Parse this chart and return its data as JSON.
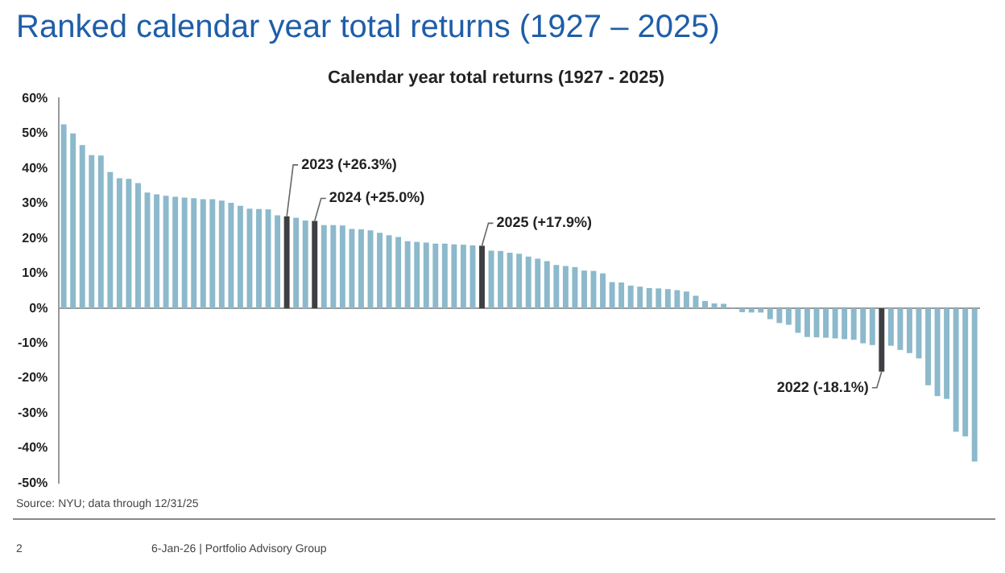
{
  "chart_data": {
    "type": "bar",
    "title": "Ranked calendar year total returns (1927 – 2025)",
    "subtitle": "Calendar year total returns (1927 - 2025)",
    "categories": [
      null,
      null,
      null,
      null,
      null,
      null,
      null,
      null,
      null,
      null,
      null,
      null,
      null,
      null,
      null,
      null,
      null,
      null,
      null,
      null,
      null,
      null,
      null,
      null,
      null,
      null,
      null,
      null,
      null,
      null,
      null,
      null,
      null,
      null,
      null,
      null,
      null,
      null,
      null,
      null,
      null,
      null,
      null,
      null,
      null,
      null,
      null,
      null,
      null,
      null,
      null,
      null,
      null,
      null,
      null,
      null,
      null,
      null,
      null,
      null,
      null,
      null,
      null,
      null,
      null,
      null,
      null,
      null,
      null,
      null,
      null,
      null,
      null,
      null,
      null,
      null,
      null,
      null,
      null,
      null,
      null,
      null,
      null,
      null,
      null,
      null,
      null,
      null,
      null,
      null,
      null,
      null,
      null,
      null,
      null,
      null,
      null,
      null,
      null
    ],
    "values": [
      52.6,
      50.0,
      46.7,
      43.8,
      43.7,
      39.0,
      37.2,
      37.0,
      35.8,
      33.1,
      32.6,
      32.2,
      31.9,
      31.7,
      31.5,
      31.2,
      31.2,
      30.8,
      30.2,
      29.3,
      28.5,
      28.4,
      28.3,
      26.6,
      26.3,
      25.9,
      25.1,
      25.0,
      23.8,
      23.8,
      23.7,
      22.7,
      22.6,
      22.3,
      21.6,
      20.9,
      20.4,
      19.2,
      19.0,
      18.8,
      18.5,
      18.5,
      18.3,
      18.2,
      18.0,
      17.9,
      16.5,
      16.4,
      15.9,
      15.6,
      14.8,
      14.2,
      13.5,
      12.4,
      12.1,
      11.8,
      10.8,
      10.7,
      10.0,
      7.5,
      7.4,
      6.5,
      6.2,
      5.8,
      5.7,
      5.5,
      5.2,
      4.8,
      3.6,
      2.1,
      1.4,
      1.3,
      0.3,
      -1.1,
      -1.2,
      -1.2,
      -3.1,
      -4.2,
      -4.7,
      -7.0,
      -8.2,
      -8.3,
      -8.4,
      -8.6,
      -8.8,
      -9.0,
      -10.0,
      -10.5,
      -18.1,
      -10.7,
      -11.9,
      -12.8,
      -14.3,
      -22.0,
      -25.1,
      -25.9,
      -35.3,
      -36.6,
      -43.8
    ],
    "colors": [
      "#8cb9cb",
      "#8cb9cb",
      "#8cb9cb",
      "#8cb9cb",
      "#8cb9cb",
      "#8cb9cb",
      "#8cb9cb",
      "#8cb9cb",
      "#8cb9cb",
      "#8cb9cb",
      "#8cb9cb",
      "#8cb9cb",
      "#8cb9cb",
      "#8cb9cb",
      "#8cb9cb",
      "#8cb9cb",
      "#8cb9cb",
      "#8cb9cb",
      "#8cb9cb",
      "#8cb9cb",
      "#8cb9cb",
      "#8cb9cb",
      "#8cb9cb",
      "#8cb9cb",
      "#3d3f42",
      "#8cb9cb",
      "#8cb9cb",
      "#3d3f42",
      "#8cb9cb",
      "#8cb9cb",
      "#8cb9cb",
      "#8cb9cb",
      "#8cb9cb",
      "#8cb9cb",
      "#8cb9cb",
      "#8cb9cb",
      "#8cb9cb",
      "#8cb9cb",
      "#8cb9cb",
      "#8cb9cb",
      "#8cb9cb",
      "#8cb9cb",
      "#8cb9cb",
      "#8cb9cb",
      "#8cb9cb",
      "#3d3f42",
      "#8cb9cb",
      "#8cb9cb",
      "#8cb9cb",
      "#8cb9cb",
      "#8cb9cb",
      "#8cb9cb",
      "#8cb9cb",
      "#8cb9cb",
      "#8cb9cb",
      "#8cb9cb",
      "#8cb9cb",
      "#8cb9cb",
      "#8cb9cb",
      "#8cb9cb",
      "#8cb9cb",
      "#8cb9cb",
      "#8cb9cb",
      "#8cb9cb",
      "#8cb9cb",
      "#8cb9cb",
      "#8cb9cb",
      "#8cb9cb",
      "#8cb9cb",
      "#8cb9cb",
      "#8cb9cb",
      "#8cb9cb",
      "#8cb9cb",
      "#8cb9cb",
      "#8cb9cb",
      "#8cb9cb",
      "#8cb9cb",
      "#8cb9cb",
      "#8cb9cb",
      "#8cb9cb",
      "#8cb9cb",
      "#8cb9cb",
      "#8cb9cb",
      "#8cb9cb",
      "#8cb9cb",
      "#8cb9cb",
      "#8cb9cb",
      "#8cb9cb",
      "#3d3f42",
      "#8cb9cb",
      "#8cb9cb",
      "#8cb9cb",
      "#8cb9cb",
      "#8cb9cb",
      "#8cb9cb",
      "#8cb9cb",
      "#8cb9cb",
      "#8cb9cb",
      "#8cb9cb"
    ],
    "value_labels": [
      null,
      null,
      null,
      null,
      null,
      null,
      null,
      null,
      null,
      null,
      null,
      null,
      null,
      null,
      null,
      null,
      null,
      null,
      null,
      null,
      null,
      null,
      null,
      null,
      "2023 (+26.3%)",
      null,
      null,
      "2024 (+25.0%)",
      null,
      null,
      null,
      null,
      null,
      null,
      null,
      null,
      null,
      null,
      null,
      null,
      null,
      null,
      null,
      null,
      null,
      "2025 (+17.9%)",
      null,
      null,
      null,
      null,
      null,
      null,
      null,
      null,
      null,
      null,
      null,
      null,
      null,
      null,
      null,
      null,
      null,
      null,
      null,
      null,
      null,
      null,
      null,
      null,
      null,
      null,
      null,
      null,
      null,
      null,
      null,
      null,
      null,
      null,
      null,
      null,
      null,
      null,
      null,
      null,
      null,
      null,
      "2022 (-18.1%)",
      null,
      null,
      null,
      null,
      null,
      null,
      null,
      null,
      null,
      null
    ],
    "ylim": [
      -50,
      60
    ],
    "yticks": [
      {
        "value": -50,
        "label": "-50%"
      },
      {
        "value": -40,
        "label": "-40%"
      },
      {
        "value": -30,
        "label": "-30%"
      },
      {
        "value": -20,
        "label": "-20%"
      },
      {
        "value": -10,
        "label": "-10%"
      },
      {
        "value": 0,
        "label": "0%"
      },
      {
        "value": 10,
        "label": "10%"
      },
      {
        "value": 20,
        "label": "20%"
      },
      {
        "value": 30,
        "label": "30%"
      },
      {
        "value": 40,
        "label": "40%"
      },
      {
        "value": 50,
        "label": "50%"
      },
      {
        "value": 60,
        "label": "60%"
      }
    ],
    "annotations": [
      "Source: NYU; data through 12/31/25",
      "2",
      "6-Jan-26  |  Portfolio Advisory Group"
    ]
  }
}
